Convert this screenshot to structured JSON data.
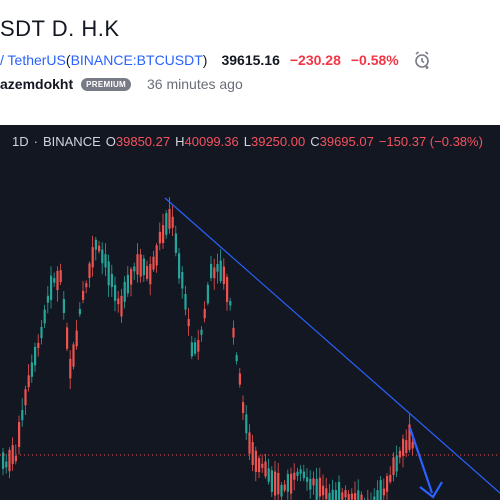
{
  "header": {
    "title": "SDT D. H.K",
    "symbol_link": "/ TetherUS",
    "exchange_link": "BINANCE:BTCUSDT",
    "paren_open": "(",
    "paren_close": ")",
    "price": "39615.16",
    "change": "−230.28",
    "change_pct": "−0.58%",
    "alarm_icon": "alarm-clock-plus-icon",
    "author": "azemdokht",
    "badge": "PREMIUM",
    "time_ago": "36 minutes ago"
  },
  "chart": {
    "interval": "1D",
    "exchange": "BINANCE",
    "open_label": "O",
    "open": "39850.27",
    "high_label": "H",
    "high": "40099.36",
    "low_label": "L",
    "low": "39250.00",
    "close_label": "C",
    "close": "39695.07",
    "change": "−150.37 (−0.38%)",
    "colors": {
      "background": "#131722",
      "up": "#26a69a",
      "down": "#ef5350",
      "trendline": "#2962ff",
      "arrow": "#2962ff",
      "current_price_line": "#ef5350"
    }
  }
}
